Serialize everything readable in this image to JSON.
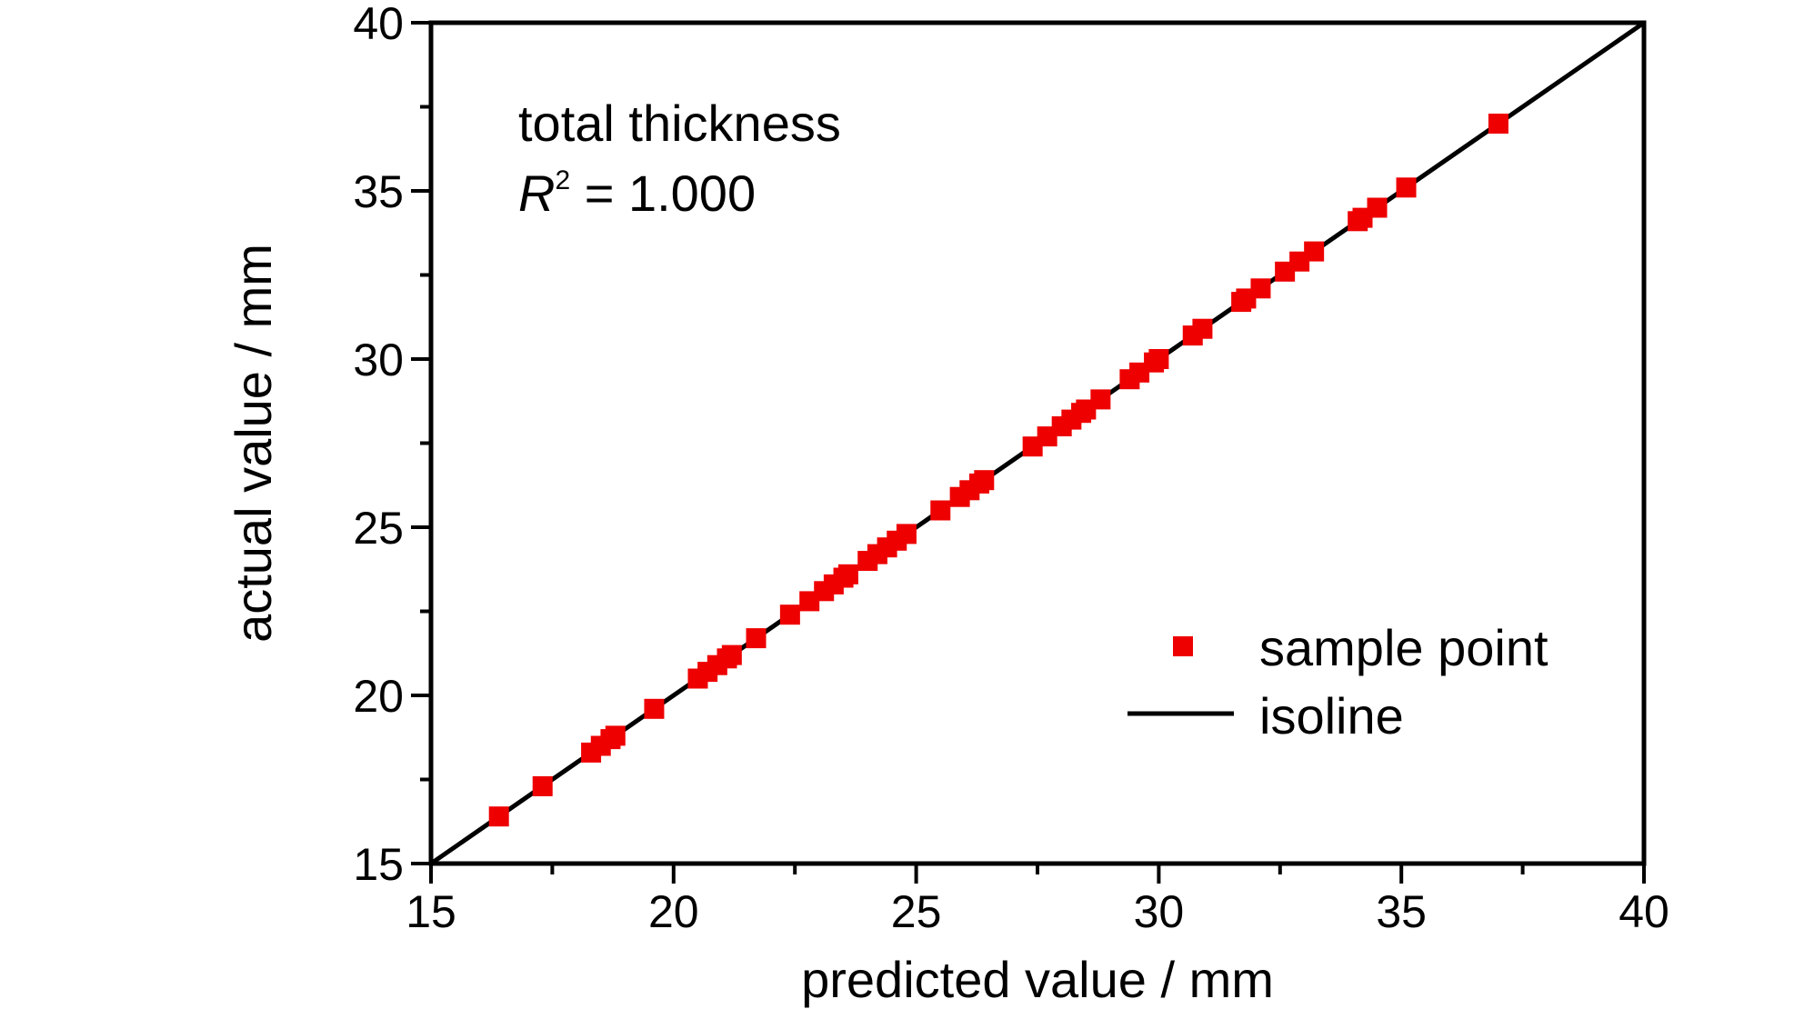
{
  "chart_data": {
    "type": "scatter",
    "xlabel": "predicted value / mm",
    "ylabel": "actual value / mm",
    "xlim": [
      15,
      40
    ],
    "ylim": [
      15,
      40
    ],
    "x_ticks": [
      15,
      20,
      25,
      30,
      35,
      40
    ],
    "y_ticks": [
      15,
      20,
      25,
      30,
      35,
      40
    ],
    "grid": false,
    "annotation": {
      "line1": "total thickness",
      "r_symbol": "R",
      "r_superscript": "2",
      "r_value": " = 1.000"
    },
    "legend_position": "bottom-right",
    "series": [
      {
        "name": "sample point",
        "marker": "square",
        "color": "#ee0000",
        "x": [
          16.4,
          17.3,
          18.3,
          18.5,
          18.7,
          18.8,
          19.6,
          20.5,
          20.7,
          20.9,
          21.1,
          21.2,
          21.7,
          22.4,
          22.8,
          23.1,
          23.3,
          23.5,
          23.6,
          24.0,
          24.2,
          24.4,
          24.6,
          24.8,
          25.5,
          25.9,
          26.1,
          26.3,
          26.4,
          27.4,
          27.7,
          28.0,
          28.2,
          28.4,
          28.5,
          28.8,
          29.4,
          29.6,
          29.9,
          30.0,
          30.7,
          30.9,
          31.7,
          31.8,
          32.1,
          32.6,
          32.9,
          33.2,
          34.1,
          34.2,
          34.5,
          35.1,
          37.0
        ],
        "y": [
          16.4,
          17.3,
          18.3,
          18.5,
          18.7,
          18.8,
          19.6,
          20.5,
          20.7,
          20.9,
          21.1,
          21.2,
          21.7,
          22.4,
          22.8,
          23.1,
          23.3,
          23.5,
          23.6,
          24.0,
          24.2,
          24.4,
          24.6,
          24.8,
          25.5,
          25.9,
          26.1,
          26.3,
          26.4,
          27.4,
          27.7,
          28.0,
          28.2,
          28.4,
          28.5,
          28.8,
          29.4,
          29.6,
          29.9,
          30.0,
          30.7,
          30.9,
          31.7,
          31.8,
          32.1,
          32.6,
          32.9,
          33.2,
          34.1,
          34.2,
          34.5,
          35.1,
          37.0
        ]
      },
      {
        "name": "isoline",
        "type": "line",
        "color": "#000000",
        "x": [
          15,
          40
        ],
        "y": [
          15,
          40
        ]
      }
    ]
  }
}
